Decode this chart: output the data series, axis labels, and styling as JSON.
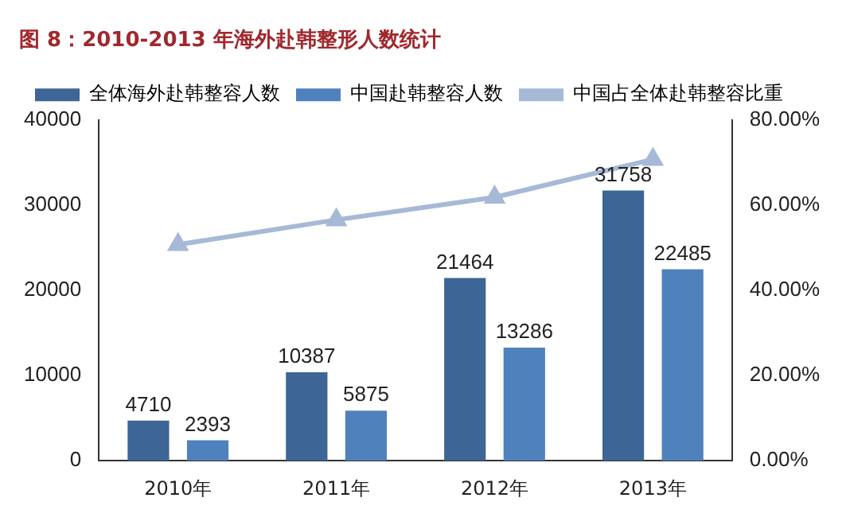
{
  "chart_data": {
    "type": "bar",
    "title": "图 8：2010-2013 年海外赴韩整形人数统计",
    "categories": [
      "2010年",
      "2011年",
      "2012年",
      "2013年"
    ],
    "series": [
      {
        "name": "全体海外赴韩整容人数",
        "color": "#3d6596",
        "values": [
          4710,
          10387,
          21464,
          31758
        ],
        "value_labels": [
          "4710",
          "10387",
          "21464",
          "31758"
        ]
      },
      {
        "name": "中国赴韩整容人数",
        "color": "#4f81bd",
        "values": [
          2393,
          5875,
          13286,
          22485
        ],
        "value_labels": [
          "2393",
          "5875",
          "13286",
          "22485"
        ]
      },
      {
        "name": "中国占全体赴韩整容比重",
        "type": "line",
        "axis": "y2",
        "color": "#a6b9d6",
        "marker": "triangle",
        "values": [
          50.8,
          56.6,
          61.9,
          70.8
        ]
      }
    ],
    "ylim": [
      0,
      40000
    ],
    "yticks": [
      0,
      10000,
      20000,
      30000,
      40000
    ],
    "y2lim": [
      0,
      80
    ],
    "y2ticks": [
      {
        "value": 0,
        "label": "0.00%"
      },
      {
        "value": 20,
        "label": "20.00%"
      },
      {
        "value": 40,
        "label": "40.00%"
      },
      {
        "value": 60,
        "label": "60.00%"
      },
      {
        "value": 80,
        "label": "80.00%"
      }
    ],
    "grid": false,
    "legend": "top left"
  }
}
